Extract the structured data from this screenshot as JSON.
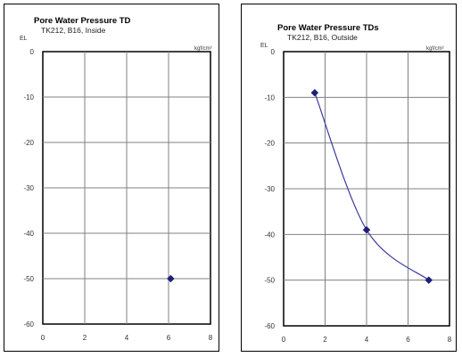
{
  "chart_data": [
    {
      "type": "scatter",
      "title": "Pore Water Pressure TD",
      "subtitle": "TK212, B16, Inside",
      "ylabel": "EL",
      "unit": "kgf/cm²",
      "xlim": [
        0,
        8
      ],
      "ylim": [
        -60,
        0
      ],
      "xticks": [
        0,
        2,
        4,
        6,
        8
      ],
      "yticks": [
        0,
        -10,
        -20,
        -30,
        -40,
        -50,
        -60
      ],
      "grid": true,
      "smooth": false,
      "marker_color": "#1f1f7a",
      "points": [
        {
          "x": 6.1,
          "y": -50
        }
      ]
    },
    {
      "type": "line",
      "title": "Pore Water Pressure TDs",
      "subtitle": "TK212, B16, Outside",
      "ylabel": "EL",
      "unit": "kgf/cm²",
      "xlim": [
        0,
        8
      ],
      "ylim": [
        -60,
        0
      ],
      "xticks": [
        0,
        2,
        4,
        6,
        8
      ],
      "yticks": [
        0,
        -10,
        -20,
        -30,
        -40,
        -50,
        -60
      ],
      "grid": true,
      "smooth": true,
      "line_color": "#3a3aa0",
      "marker_color": "#1f1f7a",
      "points": [
        {
          "x": 1.5,
          "y": -9
        },
        {
          "x": 4.0,
          "y": -39
        },
        {
          "x": 7.0,
          "y": -50
        }
      ]
    }
  ]
}
